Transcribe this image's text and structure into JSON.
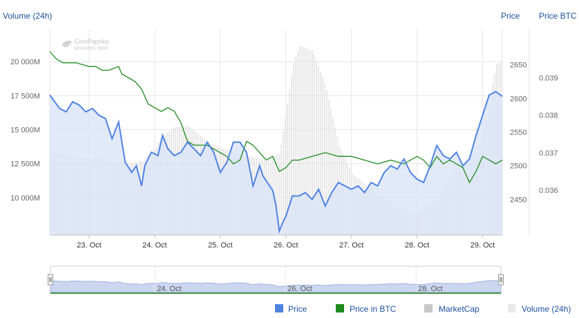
{
  "axes": {
    "left_title": "Volume (24h)",
    "right_title_price": "Price",
    "right_title_btc": "Price BTC"
  },
  "watermark": {
    "line1": "CoinPaprika",
    "line2": "provides data"
  },
  "legend": [
    {
      "label": "Price",
      "color": "#4f82e3",
      "style": "solid"
    },
    {
      "label": "Price in BTC",
      "color": "#1e8a1e",
      "style": "solid"
    },
    {
      "label": "MarketCap",
      "color": "#c8c8c8",
      "style": "solid"
    },
    {
      "label": "Volume (24h)",
      "color": "#e6e6e6",
      "style": "striped"
    }
  ],
  "colors": {
    "price_line": "#4f82e3",
    "price_area": "#dbe4f8",
    "btc_line": "#1e8a1e",
    "volume_bars": "#e0e0e0",
    "grid": "#e6e6e6",
    "axis_text": "#666666",
    "title_text": "#1e4fa0",
    "navigator_fill": "#ccd6f0",
    "navigator_border": "#b0b0b0"
  },
  "chart_data": {
    "type": "line",
    "grid": true,
    "x_ticks": [
      "23. Oct",
      "24. Oct",
      "25. Oct",
      "26. Oct",
      "27. Oct",
      "28. Oct",
      "29. Oct"
    ],
    "x_range_days": [
      22.4,
      29.3
    ],
    "left_axis": {
      "title": "Volume (24h)",
      "ticks": [
        "10 000M",
        "12 500M",
        "15 000M",
        "17 500M",
        "20 000M"
      ],
      "tick_values": [
        10000,
        12500,
        15000,
        17500,
        20000
      ],
      "ylim": [
        7250,
        22400
      ]
    },
    "price_axis": {
      "title": "Price",
      "ticks": [
        "2450",
        "2500",
        "2550",
        "2600",
        "2650"
      ],
      "tick_values": [
        2450,
        2500,
        2550,
        2600,
        2650
      ],
      "ylim": [
        2397,
        2703
      ]
    },
    "btc_axis": {
      "title": "Price BTC",
      "ticks": [
        "0.036",
        "0.037",
        "0.038",
        "0.039"
      ],
      "tick_values": [
        0.036,
        0.037,
        0.038,
        0.039
      ],
      "ylim": [
        0.0348,
        0.0403
      ]
    },
    "series": [
      {
        "name": "Price",
        "axis": "price",
        "x": [
          22.4,
          22.55,
          22.65,
          22.75,
          22.85,
          22.95,
          23.05,
          23.15,
          23.25,
          23.35,
          23.45,
          23.55,
          23.65,
          23.72,
          23.8,
          23.85,
          23.95,
          24.05,
          24.12,
          24.2,
          24.3,
          24.4,
          24.5,
          24.6,
          24.7,
          24.8,
          24.9,
          25.0,
          25.1,
          25.2,
          25.3,
          25.4,
          25.5,
          25.6,
          25.65,
          25.8,
          25.85,
          25.9,
          25.95,
          26.0,
          26.05,
          26.1,
          26.2,
          26.3,
          26.4,
          26.5,
          26.6,
          26.7,
          26.8,
          26.9,
          27.0,
          27.1,
          27.2,
          27.3,
          27.4,
          27.5,
          27.6,
          27.7,
          27.8,
          27.9,
          28.0,
          28.1,
          28.2,
          28.3,
          28.4,
          28.5,
          28.6,
          28.7,
          28.8,
          28.9,
          28.95,
          29.0,
          29.1,
          29.2,
          29.3
        ],
        "y": [
          2605,
          2585,
          2580,
          2595,
          2590,
          2580,
          2585,
          2575,
          2570,
          2540,
          2565,
          2505,
          2490,
          2500,
          2470,
          2500,
          2520,
          2515,
          2545,
          2525,
          2515,
          2520,
          2535,
          2525,
          2515,
          2535,
          2520,
          2490,
          2505,
          2535,
          2535,
          2520,
          2470,
          2500,
          2485,
          2463,
          2440,
          2403,
          2415,
          2425,
          2440,
          2455,
          2455,
          2460,
          2450,
          2465,
          2440,
          2460,
          2475,
          2470,
          2465,
          2470,
          2460,
          2475,
          2470,
          2490,
          2500,
          2495,
          2510,
          2490,
          2480,
          2475,
          2500,
          2530,
          2515,
          2510,
          2520,
          2500,
          2510,
          2545,
          2560,
          2575,
          2605,
          2610,
          2603
        ]
      },
      {
        "name": "Price in BTC",
        "axis": "btc",
        "x": [
          22.4,
          22.5,
          22.6,
          22.8,
          23.0,
          23.1,
          23.2,
          23.3,
          23.45,
          23.5,
          23.6,
          23.7,
          23.8,
          23.9,
          24.0,
          24.1,
          24.2,
          24.3,
          24.4,
          24.5,
          24.6,
          24.7,
          24.8,
          24.9,
          25.0,
          25.1,
          25.2,
          25.3,
          25.4,
          25.5,
          25.6,
          25.7,
          25.8,
          25.9,
          26.0,
          26.1,
          26.2,
          26.4,
          26.6,
          26.8,
          27.0,
          27.2,
          27.4,
          27.6,
          27.8,
          28.0,
          28.1,
          28.2,
          28.3,
          28.4,
          28.5,
          28.6,
          28.7,
          28.8,
          28.9,
          29.0,
          29.1,
          29.2,
          29.3
        ],
        "y": [
          0.0397,
          0.0395,
          0.0394,
          0.0394,
          0.0393,
          0.0393,
          0.0392,
          0.0392,
          0.0393,
          0.0391,
          0.039,
          0.0389,
          0.0387,
          0.0383,
          0.0382,
          0.0381,
          0.0382,
          0.0381,
          0.0378,
          0.0373,
          0.0372,
          0.0372,
          0.0372,
          0.0371,
          0.037,
          0.0369,
          0.0367,
          0.0368,
          0.0373,
          0.0372,
          0.037,
          0.0368,
          0.0369,
          0.0365,
          0.0366,
          0.0368,
          0.0368,
          0.0369,
          0.037,
          0.0369,
          0.0369,
          0.0368,
          0.0367,
          0.0368,
          0.0367,
          0.0369,
          0.0368,
          0.0366,
          0.0369,
          0.0367,
          0.0368,
          0.0367,
          0.0366,
          0.0362,
          0.0365,
          0.0369,
          0.0368,
          0.0367,
          0.0368
        ]
      },
      {
        "name": "Volume (24h)",
        "axis": "volume",
        "x": [
          22.4,
          22.6,
          22.8,
          23.0,
          23.2,
          23.4,
          23.6,
          23.8,
          24.0,
          24.1,
          24.3,
          24.5,
          24.7,
          24.9,
          25.1,
          25.3,
          25.5,
          25.7,
          25.9,
          26.0,
          26.1,
          26.2,
          26.4,
          26.6,
          26.8,
          27.0,
          27.2,
          27.4,
          27.6,
          27.8,
          28.0,
          28.2,
          28.4,
          28.6,
          28.8,
          29.0,
          29.1,
          29.2,
          29.3
        ],
        "y": [
          13300,
          13200,
          13000,
          12900,
          12800,
          12600,
          12500,
          12700,
          13600,
          14500,
          15200,
          15300,
          14500,
          13800,
          13500,
          13200,
          13000,
          12700,
          13300,
          16500,
          19800,
          21200,
          20800,
          18200,
          13900,
          11800,
          11000,
          10200,
          9700,
          9000,
          8800,
          9400,
          10800,
          12100,
          12600,
          14300,
          17300,
          19800,
          20000
        ]
      }
    ]
  },
  "navigator": {
    "labels": [
      "24. Oct",
      "26. Oct",
      "28. Oct"
    ]
  }
}
